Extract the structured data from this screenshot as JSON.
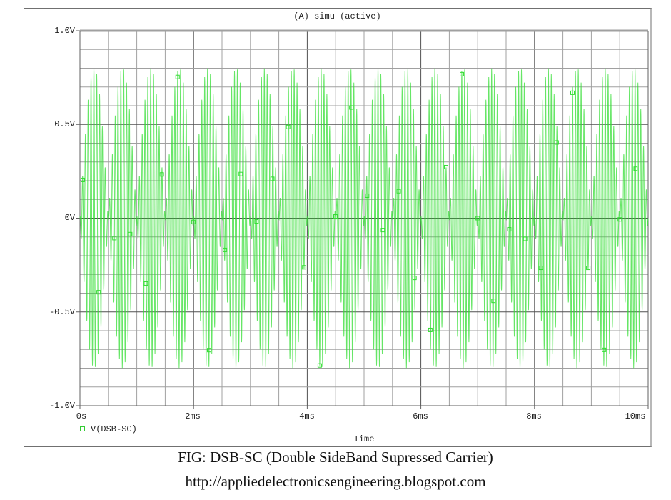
{
  "window": {
    "title": "(A) simu (active)"
  },
  "chart_data": {
    "type": "line",
    "title": "(A) simu (active)",
    "xlabel": "Time",
    "ylabel": "",
    "xlim": [
      0,
      10
    ],
    "x_unit": "ms",
    "ylim": [
      -1.0,
      1.0
    ],
    "y_unit": "V",
    "x_ticks": [
      "0s",
      "2ms",
      "4ms",
      "6ms",
      "8ms",
      "10ms"
    ],
    "y_ticks": [
      "1.0V",
      "0.5V",
      "0V",
      "-0.5V",
      "-1.0V"
    ],
    "grid": true,
    "legend_position": "bottom-left",
    "series": [
      {
        "name": "V(DSB-SC)",
        "color": "#33dd33",
        "description": "DSB-SC signal: carrier multiplied by sinusoidal message; envelope lobes ~0.5ms wide, peak amplitude ~0.8V",
        "message_freq_khz": 1,
        "carrier_freq_khz": 20,
        "peak_amplitude_v": 0.8
      }
    ]
  },
  "legend": {
    "label": "V(DSB-SC)"
  },
  "caption": {
    "line1": "FIG: DSB-SC (Double SideBand Supressed Carrier)",
    "line2": "http://appliedelectronicsengineering.blogspot.com"
  },
  "colors": {
    "trace": "#33dd33",
    "trace_light": "#a8f0a8",
    "grid": "#a0a0a0",
    "axis": "#606060"
  }
}
